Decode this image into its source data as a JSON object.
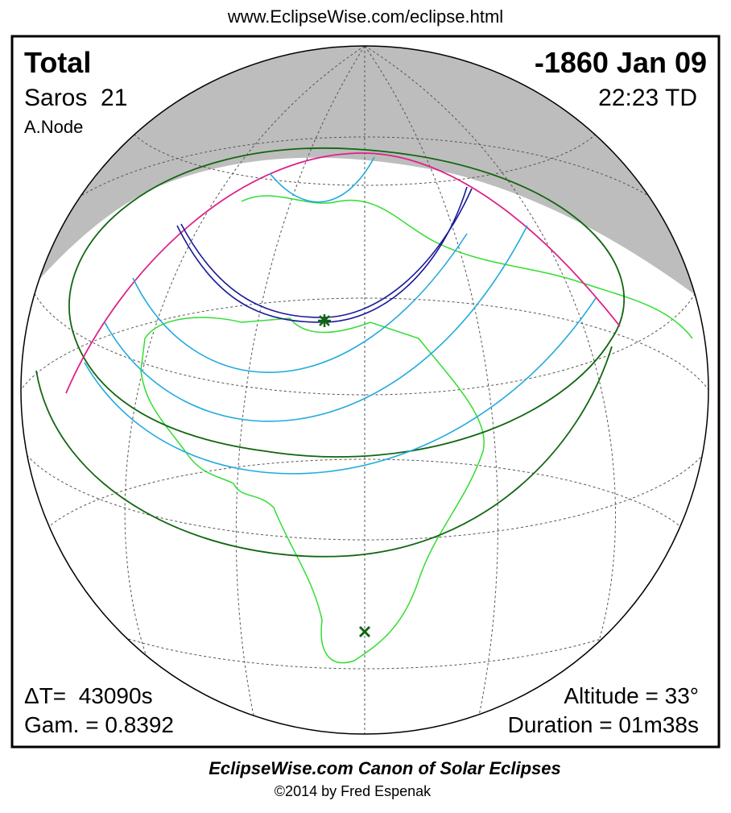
{
  "header": {
    "url": "www.EclipseWise.com/eclipse.html"
  },
  "panel": {
    "top_left": {
      "type": "Total",
      "saros": "Saros  21",
      "node": "A.Node"
    },
    "top_right": {
      "date": "-1860 Jan 09",
      "time": "22:23 TD"
    },
    "bottom_left": {
      "delta_t": "ΔT=  43090s",
      "gamma": "Gam. = 0.8392"
    },
    "bottom_right": {
      "altitude": "Altitude = 33°",
      "duration": "Duration = 01m38s"
    }
  },
  "footer": {
    "title": "EclipseWise.com Canon of Solar Eclipses",
    "copyright": "©2014 by Fred Espenak"
  }
}
